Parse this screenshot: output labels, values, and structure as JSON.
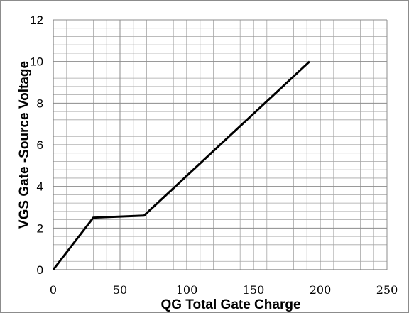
{
  "chart_data": {
    "type": "line",
    "title": "",
    "xlabel": "QG Total Gate Charge",
    "ylabel": "VGS  Gate -Source Voltage",
    "xlim": [
      0,
      250
    ],
    "ylim": [
      0,
      12
    ],
    "x_ticks": [
      "0",
      "50",
      "100",
      "150",
      "200",
      "250"
    ],
    "y_ticks": [
      "0",
      "2",
      "4",
      "6",
      "8",
      "10",
      "12"
    ],
    "grid": true,
    "legend": "none",
    "series": [
      {
        "x": [
          0,
          30,
          68,
          192
        ],
        "y": [
          0,
          2.5,
          2.6,
          10
        ]
      }
    ],
    "colors": {
      "line": "#000000",
      "grid": "#8c8c8c"
    }
  }
}
